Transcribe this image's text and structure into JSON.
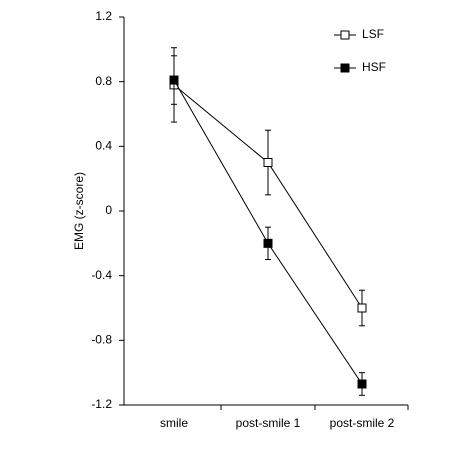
{
  "chart_data": {
    "type": "line",
    "y_label": "EMG (z-score)",
    "categories": [
      "smile",
      "post-smile 1",
      "post-smile 2"
    ],
    "series": [
      {
        "name": "LSF",
        "color": "#000000",
        "marker_fill": "#ffffff",
        "values": [
          0.78,
          0.3,
          -0.6
        ],
        "error": [
          0.23,
          0.2,
          0.11
        ]
      },
      {
        "name": "HSF",
        "color": "#000000",
        "marker_fill": "#000000",
        "values": [
          0.81,
          -0.2,
          -1.07
        ],
        "error": [
          0.15,
          0.1,
          0.07
        ]
      }
    ],
    "ylim": [
      -1.2,
      1.2
    ],
    "yticks": [
      1.2,
      0.8,
      0.4,
      0,
      -0.4,
      -0.8,
      -1.2
    ],
    "legend": "upper right"
  }
}
